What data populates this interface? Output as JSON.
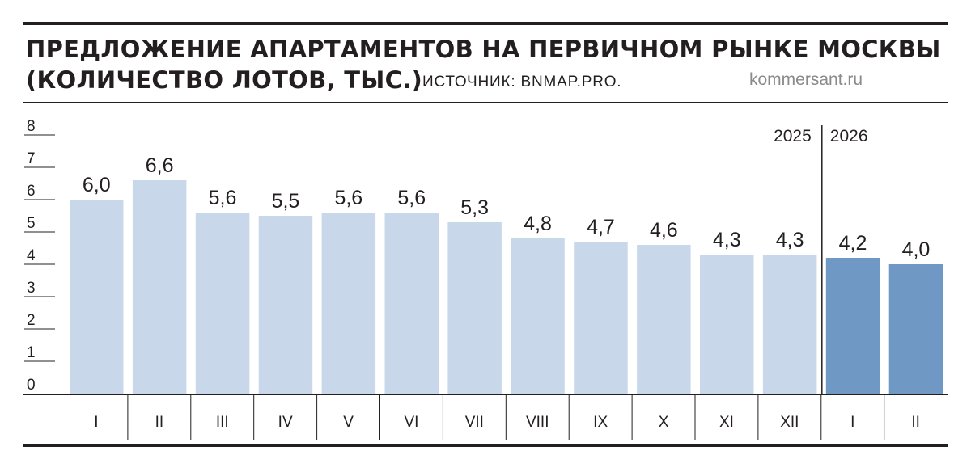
{
  "header": {
    "title_line1": "ПРЕДЛОЖЕНИЕ АПАРТАМЕНТОВ НА ПЕРВИЧНОМ РЫНКЕ МОСКВЫ",
    "title_line2": "(КОЛИЧЕСТВО ЛОТОВ, ТЫС.)",
    "source": "ИСТОЧНИК: BNMAP.PRO.",
    "site": "kommersant.ru"
  },
  "chart_data": {
    "type": "bar",
    "title": "ПРЕДЛОЖЕНИЕ АПАРТАМЕНТОВ НА ПЕРВИЧНОМ РЫНКЕ МОСКВЫ (КОЛИЧЕСТВО ЛОТОВ, ТЫС.)",
    "categories": [
      "I",
      "II",
      "III",
      "IV",
      "V",
      "VI",
      "VII",
      "VIII",
      "IX",
      "X",
      "XI",
      "XII",
      "I",
      "II"
    ],
    "values": [
      6.0,
      6.6,
      5.6,
      5.5,
      5.6,
      5.6,
      5.3,
      4.8,
      4.7,
      4.6,
      4.3,
      4.3,
      4.2,
      4.0
    ],
    "value_labels": [
      "6,0",
      "6,6",
      "5,6",
      "5,5",
      "5,6",
      "5,6",
      "5,3",
      "4,8",
      "4,7",
      "4,6",
      "4,3",
      "4,3",
      "4,2",
      "4,0"
    ],
    "year_groups": [
      {
        "label": "2025",
        "start_index": 0,
        "end_index": 11,
        "color": "#c8d8ea"
      },
      {
        "label": "2026",
        "start_index": 12,
        "end_index": 13,
        "color": "#6f99c4"
      }
    ],
    "y_ticks": [
      "0",
      "1",
      "2",
      "3",
      "4",
      "5",
      "6",
      "7",
      "8"
    ],
    "ylim": [
      0,
      8
    ],
    "grid": false,
    "legend": "none"
  }
}
